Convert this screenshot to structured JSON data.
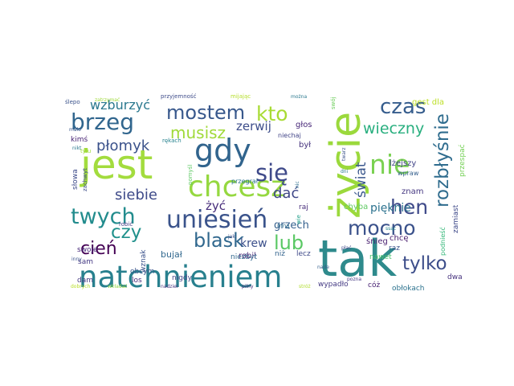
{
  "cloud": {
    "background": "#ffffff",
    "words": [
      {
        "text": "tak",
        "color": "#2e8a8c"
      },
      {
        "text": "jest",
        "color": "#a3dc3e"
      },
      {
        "text": "życie",
        "color": "#9bd93c"
      },
      {
        "text": "natchnieniem",
        "color": "#28808e"
      },
      {
        "text": "gdy",
        "color": "#31648d"
      },
      {
        "text": "chcesz",
        "color": "#95d840"
      },
      {
        "text": "nie",
        "color": "#7ad151"
      },
      {
        "text": "się",
        "color": "#3f4a8a"
      },
      {
        "text": "uniesień",
        "color": "#3a538b"
      },
      {
        "text": "mostem",
        "color": "#38588c"
      },
      {
        "text": "brzeg",
        "color": "#31668e"
      },
      {
        "text": "czas",
        "color": "#365d8d"
      },
      {
        "text": "kto",
        "color": "#a8db34"
      },
      {
        "text": "rozbłyśnie",
        "color": "#2f6c8e"
      },
      {
        "text": "twych",
        "color": "#228c8d"
      },
      {
        "text": "hen",
        "color": "#3e4989"
      },
      {
        "text": "mocno",
        "color": "#3b528b"
      },
      {
        "text": "blask",
        "color": "#31688e"
      },
      {
        "text": "lub",
        "color": "#5ac864"
      },
      {
        "text": "tylko",
        "color": "#3d4e8a"
      },
      {
        "text": "wieczny",
        "color": "#29af7f"
      },
      {
        "text": "musisz",
        "color": "#a0da39"
      },
      {
        "text": "czy",
        "color": "#21918c"
      },
      {
        "text": "cień",
        "color": "#440154"
      },
      {
        "text": "płomyk",
        "color": "#3b528b"
      },
      {
        "text": "siebie",
        "color": "#3e4a89"
      },
      {
        "text": "świat",
        "color": "#39568c"
      },
      {
        "text": "dać",
        "color": "#3f4788"
      },
      {
        "text": "wzburzyć",
        "color": "#2a788e"
      },
      {
        "text": "zerwij",
        "color": "#3d4d8a"
      },
      {
        "text": "krew",
        "color": "#3c508b"
      },
      {
        "text": "żyć",
        "color": "#472d7b"
      },
      {
        "text": "pięknie",
        "color": "#2c728e"
      },
      {
        "text": "grzech",
        "color": "#34608d"
      },
      {
        "text": "bujał",
        "color": "#31688e"
      },
      {
        "text": "robił",
        "color": "#482475"
      },
      {
        "text": "głos",
        "color": "#482878"
      },
      {
        "text": "był",
        "color": "#46337e"
      },
      {
        "text": "gest dla",
        "color": "#bddf26"
      },
      {
        "text": "lżejszy",
        "color": "#414487"
      },
      {
        "text": "przespać",
        "color": "#74d055"
      },
      {
        "text": "znam",
        "color": "#453781"
      },
      {
        "text": "zamiast",
        "color": "#3e4989"
      },
      {
        "text": "chyba",
        "color": "#5ec962"
      },
      {
        "text": "nawet",
        "color": "#4ac16d"
      },
      {
        "text": "chcę",
        "color": "#481b6d"
      },
      {
        "text": "śnieg",
        "color": "#481f70"
      },
      {
        "text": "raz",
        "color": "#3b528b"
      },
      {
        "text": "dwa",
        "color": "#46327e"
      },
      {
        "text": "cóż",
        "color": "#482173"
      },
      {
        "text": "obłokach",
        "color": "#2c728e"
      },
      {
        "text": "wypadło",
        "color": "#443a83"
      },
      {
        "text": "lecz",
        "color": "#3e4a89"
      },
      {
        "text": "niż",
        "color": "#33638d"
      },
      {
        "text": "niezbyt",
        "color": "#31688e"
      },
      {
        "text": "nigdy",
        "color": "#414487"
      },
      {
        "text": "obcym",
        "color": "#39568c"
      },
      {
        "text": "los",
        "color": "#472a7a"
      },
      {
        "text": "wznak",
        "color": "#3b528b"
      },
      {
        "text": "mną",
        "color": "#2e6f8e"
      },
      {
        "text": "raj",
        "color": "#472c7a"
      },
      {
        "text": "swoje",
        "color": "#482979"
      },
      {
        "text": "sam",
        "color": "#443983"
      },
      {
        "text": "dam",
        "color": "#453882"
      },
      {
        "text": "słowa",
        "color": "#3e4c8a"
      },
      {
        "text": "kimś",
        "color": "#482374"
      },
      {
        "text": "robić",
        "color": "#443a83"
      },
      {
        "text": "przegrał",
        "color": "#2b758e"
      },
      {
        "text": "niechaj",
        "color": "#414487"
      },
      {
        "text": "wpraw",
        "color": "#355f8d"
      },
      {
        "text": "podnieść",
        "color": "#35b779"
      },
      {
        "text": "tylu",
        "color": "#9fdb3b"
      },
      {
        "text": "zachwyt",
        "color": "#3d4e8a"
      },
      {
        "text": "rękach",
        "color": "#26828e"
      },
      {
        "text": "pomyśl",
        "color": "#5dc863"
      },
      {
        "text": "nic",
        "color": "#2d708e"
      },
      {
        "text": "wie",
        "color": "#1f9e89"
      },
      {
        "text": "przyjemność",
        "color": "#3e4c8a"
      },
      {
        "text": "ślepo",
        "color": "#3b528b"
      },
      {
        "text": "mijając",
        "color": "#b5de2b"
      },
      {
        "text": "swój",
        "color": "#6ccd5a"
      },
      {
        "text": "można",
        "color": "#2a788e"
      },
      {
        "text": "twarz",
        "color": "#3b528b"
      },
      {
        "text": "dni",
        "color": "#287c8e"
      },
      {
        "text": "nade",
        "color": "#35608d"
      },
      {
        "text": "nadziei",
        "color": "#46337f"
      },
      {
        "text": "dobrych",
        "color": "#b8de29"
      },
      {
        "text": "wkładać",
        "color": "#90d743"
      },
      {
        "text": "pilny",
        "color": "#472c7a"
      },
      {
        "text": "stróż",
        "color": "#b0dd2f"
      },
      {
        "text": "pozna",
        "color": "#443983"
      },
      {
        "text": "inny",
        "color": "#3b528b"
      },
      {
        "text": "ssąc",
        "color": "#25848e"
      },
      {
        "text": "zatrzymać",
        "color": "#9fda3a"
      },
      {
        "text": "mało",
        "color": "#39568c"
      },
      {
        "text": "płać",
        "color": "#3e4989"
      },
      {
        "text": "nikt",
        "color": "#2a788e"
      },
      {
        "text": "jak",
        "color": "#3b528b"
      }
    ]
  }
}
